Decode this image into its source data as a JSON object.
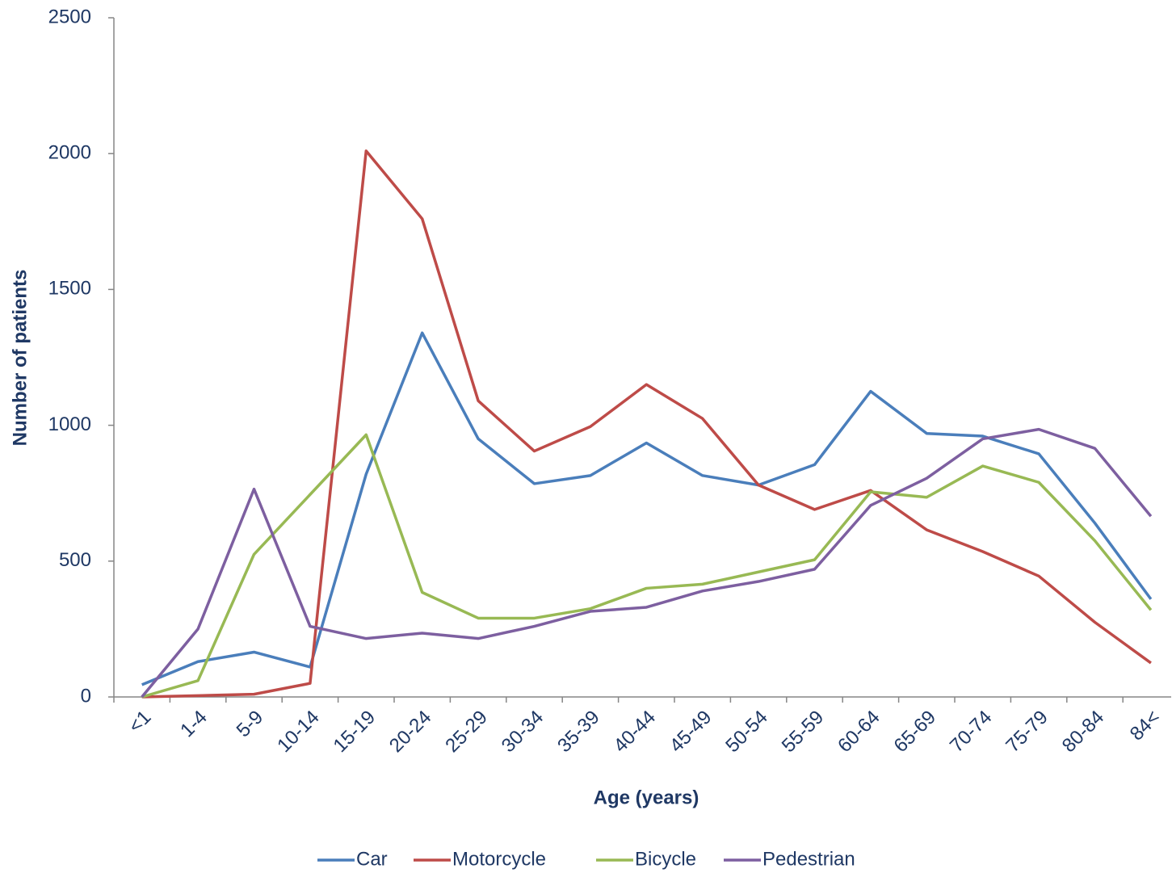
{
  "chart_data": {
    "type": "line",
    "y_label": "Number of patients",
    "x_label": "Age (years)",
    "categories": [
      "<1",
      "1-4",
      "5-9",
      "10-14",
      "15-19",
      "20-24",
      "25-29",
      "30-34",
      "35-39",
      "40-44",
      "45-49",
      "50-54",
      "55-59",
      "60-64",
      "65-69",
      "70-74",
      "75-79",
      "80-84",
      "84<"
    ],
    "series": [
      {
        "name": "Car",
        "color": "#4a7ebb",
        "values": [
          45,
          130,
          165,
          110,
          820,
          1340,
          950,
          785,
          815,
          935,
          815,
          780,
          855,
          1125,
          970,
          960,
          895,
          640,
          360
        ]
      },
      {
        "name": "Motorcycle",
        "color": "#be4b48",
        "values": [
          0,
          5,
          10,
          50,
          2010,
          1760,
          1090,
          905,
          995,
          1150,
          1025,
          780,
          690,
          760,
          615,
          535,
          445,
          275,
          125
        ]
      },
      {
        "name": "Bicycle",
        "color": "#98b954",
        "values": [
          0,
          60,
          525,
          745,
          965,
          385,
          290,
          290,
          325,
          400,
          415,
          460,
          505,
          755,
          735,
          850,
          790,
          575,
          320
        ]
      },
      {
        "name": "Pedestrian",
        "color": "#7d5fa0",
        "values": [
          0,
          250,
          765,
          260,
          215,
          235,
          215,
          260,
          315,
          330,
          390,
          425,
          470,
          705,
          805,
          950,
          985,
          915,
          665
        ]
      }
    ],
    "ylim": [
      0,
      2500
    ],
    "yticks": [
      0,
      500,
      1000,
      1500,
      2000,
      2500
    ],
    "legend": "bottom"
  }
}
